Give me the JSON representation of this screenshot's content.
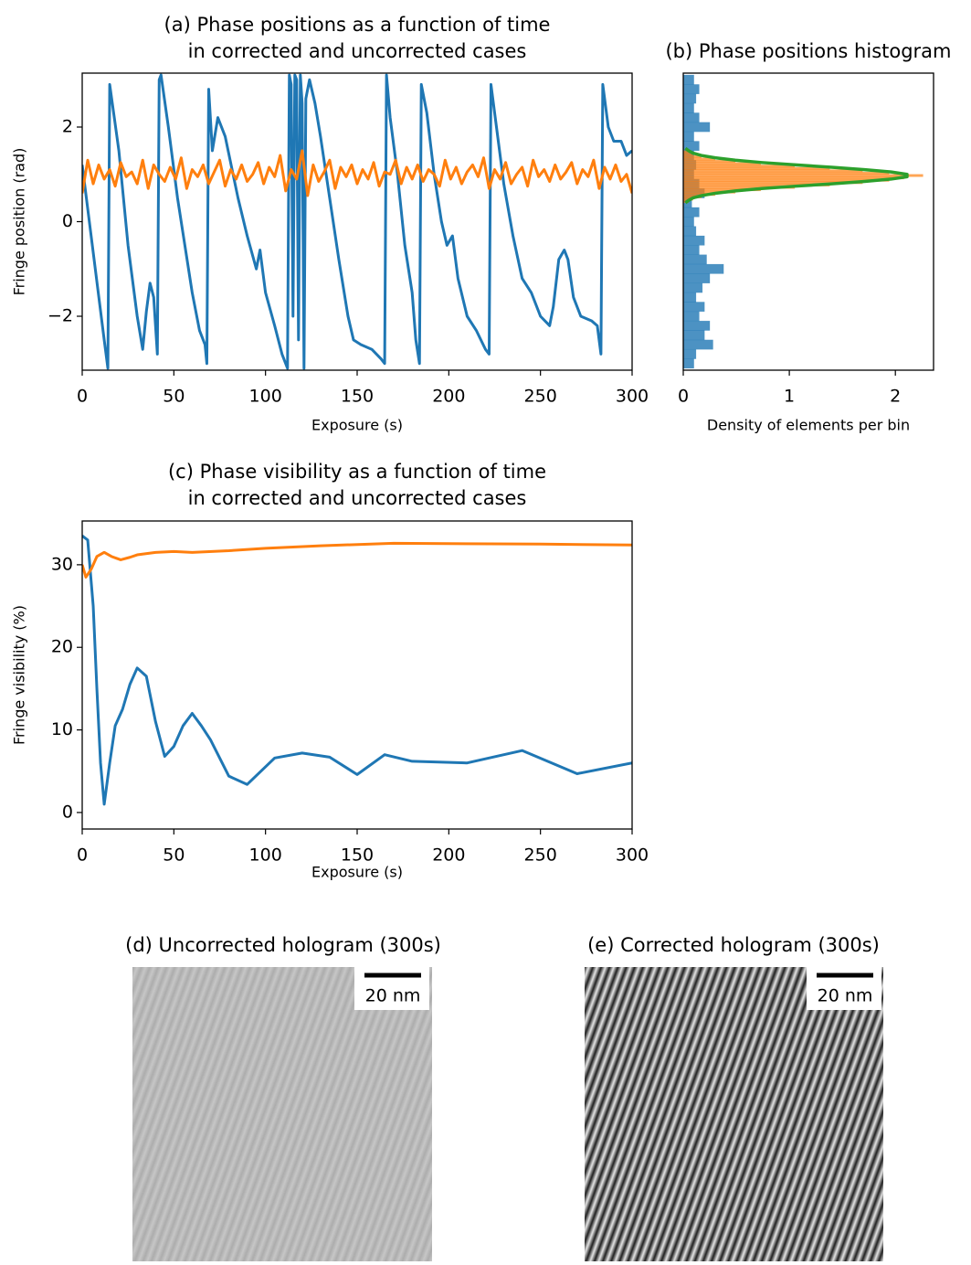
{
  "chart_data": [
    {
      "type": "line",
      "title": [
        "(a) Phase positions as a function of time",
        "in corrected and uncorrected cases"
      ],
      "xlabel": "Exposure (s)",
      "ylabel": "Fringe position (rad)",
      "xlim": [
        0,
        300
      ],
      "xticks": [
        0,
        50,
        100,
        150,
        200,
        250,
        300
      ],
      "ylim": [
        -3.14,
        3.14
      ],
      "yticks": [
        {
          "value": -2,
          "label": "−2"
        },
        0,
        2
      ],
      "series": [
        {
          "color": "#1f77b4",
          "x": [
            0,
            12,
            14,
            15,
            20,
            25,
            30,
            33,
            35,
            37,
            39,
            41,
            42,
            43,
            47,
            52,
            56,
            60,
            64,
            67,
            68,
            69,
            71,
            74,
            78,
            85,
            90,
            95,
            97,
            100,
            105,
            109,
            112,
            113,
            114,
            115,
            116,
            117,
            118,
            119,
            120,
            121,
            122,
            124,
            127,
            130,
            135,
            140,
            145,
            148,
            152,
            158,
            163,
            165,
            166,
            168,
            172,
            176,
            180,
            182,
            184,
            185,
            188,
            192,
            196,
            199,
            202,
            205,
            210,
            215,
            220,
            222,
            223,
            226,
            230,
            235,
            240,
            245,
            250,
            255,
            257,
            260,
            263,
            265,
            268,
            272,
            278,
            281,
            283,
            284,
            287,
            290,
            294,
            297,
            300
          ],
          "values": [
            1.2,
            -2.5,
            -3.1,
            2.9,
            1.5,
            -0.5,
            -2.0,
            -2.7,
            -1.9,
            -1.3,
            -1.6,
            -2.8,
            3.0,
            3.1,
            2.0,
            0.5,
            -0.5,
            -1.5,
            -2.3,
            -2.6,
            -3.0,
            2.8,
            1.5,
            2.2,
            1.8,
            0.5,
            -0.3,
            -1.0,
            -0.6,
            -1.5,
            -2.2,
            -2.8,
            -3.1,
            3.1,
            2.9,
            -2.0,
            3.1,
            3.0,
            -2.5,
            3.1,
            2.5,
            -3.1,
            2.6,
            3.0,
            2.5,
            1.8,
            0.5,
            -0.8,
            -2.0,
            -2.5,
            -2.6,
            -2.7,
            -2.9,
            -3.0,
            3.1,
            2.2,
            1.0,
            -0.5,
            -1.5,
            -2.5,
            -3.0,
            2.9,
            2.3,
            1.0,
            0.0,
            -0.5,
            -0.3,
            -1.2,
            -2.0,
            -2.3,
            -2.7,
            -2.8,
            2.9,
            2.0,
            0.8,
            -0.3,
            -1.2,
            -1.5,
            -2.0,
            -2.2,
            -1.8,
            -0.8,
            -0.6,
            -0.8,
            -1.6,
            -2.0,
            -2.1,
            -2.2,
            -2.8,
            2.9,
            2.0,
            1.7,
            1.7,
            1.4,
            1.5
          ]
        },
        {
          "color": "#ff7f0e",
          "x": [
            0,
            3,
            6,
            9,
            12,
            15,
            18,
            21,
            24,
            27,
            30,
            33,
            36,
            39,
            42,
            45,
            48,
            51,
            54,
            57,
            60,
            63,
            66,
            69,
            72,
            75,
            78,
            81,
            84,
            87,
            90,
            93,
            96,
            99,
            102,
            105,
            108,
            111,
            114,
            117,
            120,
            123,
            126,
            129,
            132,
            135,
            138,
            141,
            144,
            147,
            150,
            153,
            156,
            159,
            162,
            165,
            168,
            171,
            174,
            177,
            180,
            183,
            186,
            189,
            192,
            195,
            198,
            201,
            204,
            207,
            210,
            213,
            216,
            219,
            222,
            225,
            228,
            231,
            234,
            237,
            240,
            243,
            246,
            249,
            252,
            255,
            258,
            261,
            264,
            267,
            270,
            273,
            276,
            279,
            282,
            285,
            288,
            291,
            294,
            297,
            300
          ],
          "values": [
            0.6,
            1.3,
            0.8,
            1.2,
            0.9,
            1.1,
            0.75,
            1.25,
            0.95,
            1.05,
            0.8,
            1.3,
            0.7,
            1.2,
            1.0,
            0.85,
            1.15,
            0.9,
            1.35,
            0.7,
            1.1,
            0.95,
            1.2,
            0.8,
            1.05,
            1.3,
            0.75,
            1.1,
            0.9,
            1.2,
            0.85,
            1.0,
            1.25,
            0.8,
            1.15,
            0.95,
            1.4,
            0.65,
            1.1,
            0.9,
            1.5,
            0.55,
            1.2,
            0.85,
            1.05,
            1.3,
            0.7,
            1.15,
            0.95,
            1.2,
            0.8,
            1.1,
            0.9,
            1.25,
            0.75,
            1.05,
            1.0,
            1.3,
            0.8,
            1.15,
            0.9,
            1.2,
            0.85,
            1.1,
            1.0,
            0.75,
            1.3,
            0.9,
            1.15,
            0.8,
            1.05,
            1.2,
            0.95,
            1.35,
            0.7,
            1.1,
            0.9,
            1.25,
            0.8,
            1.0,
            1.15,
            0.75,
            1.3,
            0.95,
            1.1,
            0.85,
            1.2,
            0.9,
            1.05,
            1.25,
            0.8,
            1.1,
            0.95,
            1.3,
            0.7,
            1.15,
            0.9,
            1.2,
            0.85,
            1.0,
            0.6
          ]
        }
      ]
    },
    {
      "type": "histogram",
      "orientation": "horizontal",
      "title": [
        "(b) Phase positions histogram"
      ],
      "xlabel": "Density of elements per bin",
      "xlim": [
        0,
        2.36
      ],
      "xticks": [
        0,
        1,
        2
      ],
      "ylim": [
        -3.14,
        3.14
      ],
      "histograms": [
        {
          "color": "#1f77b4",
          "bins": [
            -3.1,
            -2.9,
            -2.7,
            -2.5,
            -2.3,
            -2.1,
            -1.9,
            -1.7,
            -1.5,
            -1.3,
            -1.1,
            -0.9,
            -0.7,
            -0.5,
            -0.3,
            -0.1,
            0.1,
            0.3,
            0.5,
            0.7,
            0.9,
            1.1,
            1.3,
            1.5,
            1.7,
            1.9,
            2.1,
            2.3,
            2.5,
            2.7,
            2.9,
            3.1
          ],
          "values": [
            0.1,
            0.12,
            0.28,
            0.2,
            0.25,
            0.15,
            0.2,
            0.12,
            0.18,
            0.25,
            0.38,
            0.22,
            0.15,
            0.2,
            0.12,
            0.1,
            0.15,
            0.08,
            0.2,
            0.15,
            0.1,
            0.12,
            0.1,
            0.15,
            0.1,
            0.25,
            0.15,
            0.1,
            0.12,
            0.15,
            0.1
          ]
        },
        {
          "color": "#ff7f0e",
          "bins": [
            0.4,
            0.45,
            0.5,
            0.55,
            0.6,
            0.65,
            0.7,
            0.75,
            0.8,
            0.85,
            0.9,
            0.95,
            1.0,
            1.05,
            1.1,
            1.15,
            1.2,
            1.25,
            1.3,
            1.35,
            1.4,
            1.45,
            1.5
          ],
          "values": [
            0.05,
            0.09,
            0.17,
            0.3,
            0.49,
            0.73,
            1.05,
            1.38,
            1.69,
            1.94,
            2.08,
            2.26,
            1.94,
            1.69,
            1.38,
            1.05,
            0.73,
            0.49,
            0.3,
            0.17,
            0.09,
            0.05
          ]
        }
      ],
      "curve": {
        "color": "#2ca02c",
        "y": [
          0.4,
          0.45,
          0.5,
          0.55,
          0.6,
          0.65,
          0.7,
          0.75,
          0.8,
          0.85,
          0.9,
          0.95,
          1.0,
          1.05,
          1.1,
          1.15,
          1.2,
          1.25,
          1.3,
          1.35,
          1.4,
          1.45,
          1.5,
          1.55
        ],
        "values": [
          0.02,
          0.05,
          0.09,
          0.17,
          0.3,
          0.49,
          0.74,
          1.06,
          1.4,
          1.71,
          1.96,
          2.11,
          2.11,
          1.96,
          1.71,
          1.4,
          1.06,
          0.74,
          0.49,
          0.3,
          0.17,
          0.09,
          0.05,
          0.02
        ]
      }
    },
    {
      "type": "line",
      "title": [
        "(c) Phase visibility as a function of time",
        "in corrected and uncorrected cases"
      ],
      "xlabel": "Exposure (s)",
      "ylabel": "Fringe visibility (%)",
      "xlim": [
        0,
        300
      ],
      "xticks": [
        0,
        50,
        100,
        150,
        200,
        250,
        300
      ],
      "ylim": [
        -2,
        35.3
      ],
      "yticks": [
        0,
        10,
        20,
        30
      ],
      "series": [
        {
          "color": "#1f77b4",
          "x": [
            0,
            3,
            6,
            8,
            10,
            12,
            15,
            18,
            22,
            26,
            30,
            35,
            40,
            45,
            50,
            55,
            60,
            65,
            70,
            80,
            90,
            105,
            120,
            135,
            150,
            165,
            180,
            210,
            240,
            270,
            300
          ],
          "values": [
            33.5,
            33,
            25,
            15,
            6,
            1,
            6,
            10.5,
            12.5,
            15.5,
            17.5,
            16.5,
            11,
            6.8,
            8,
            10.5,
            12,
            10.5,
            8.8,
            4.4,
            3.4,
            6.6,
            7.2,
            6.7,
            4.6,
            7,
            6.2,
            6,
            7.5,
            4.7,
            6
          ]
        },
        {
          "color": "#ff7f0e",
          "x": [
            0,
            2,
            5,
            8,
            12,
            16,
            21,
            26,
            30,
            40,
            50,
            60,
            80,
            100,
            130,
            170,
            250,
            300
          ],
          "values": [
            30,
            28.5,
            29.5,
            31,
            31.5,
            31,
            30.6,
            30.9,
            31.2,
            31.5,
            31.6,
            31.5,
            31.7,
            32,
            32.3,
            32.6,
            32.5,
            32.4
          ]
        }
      ]
    }
  ],
  "images": [
    {
      "title": "(d) Uncorrected hologram (300s)",
      "scale_label": "20 nm"
    },
    {
      "title": "(e) Corrected hologram (300s)",
      "scale_label": "20 nm"
    }
  ]
}
